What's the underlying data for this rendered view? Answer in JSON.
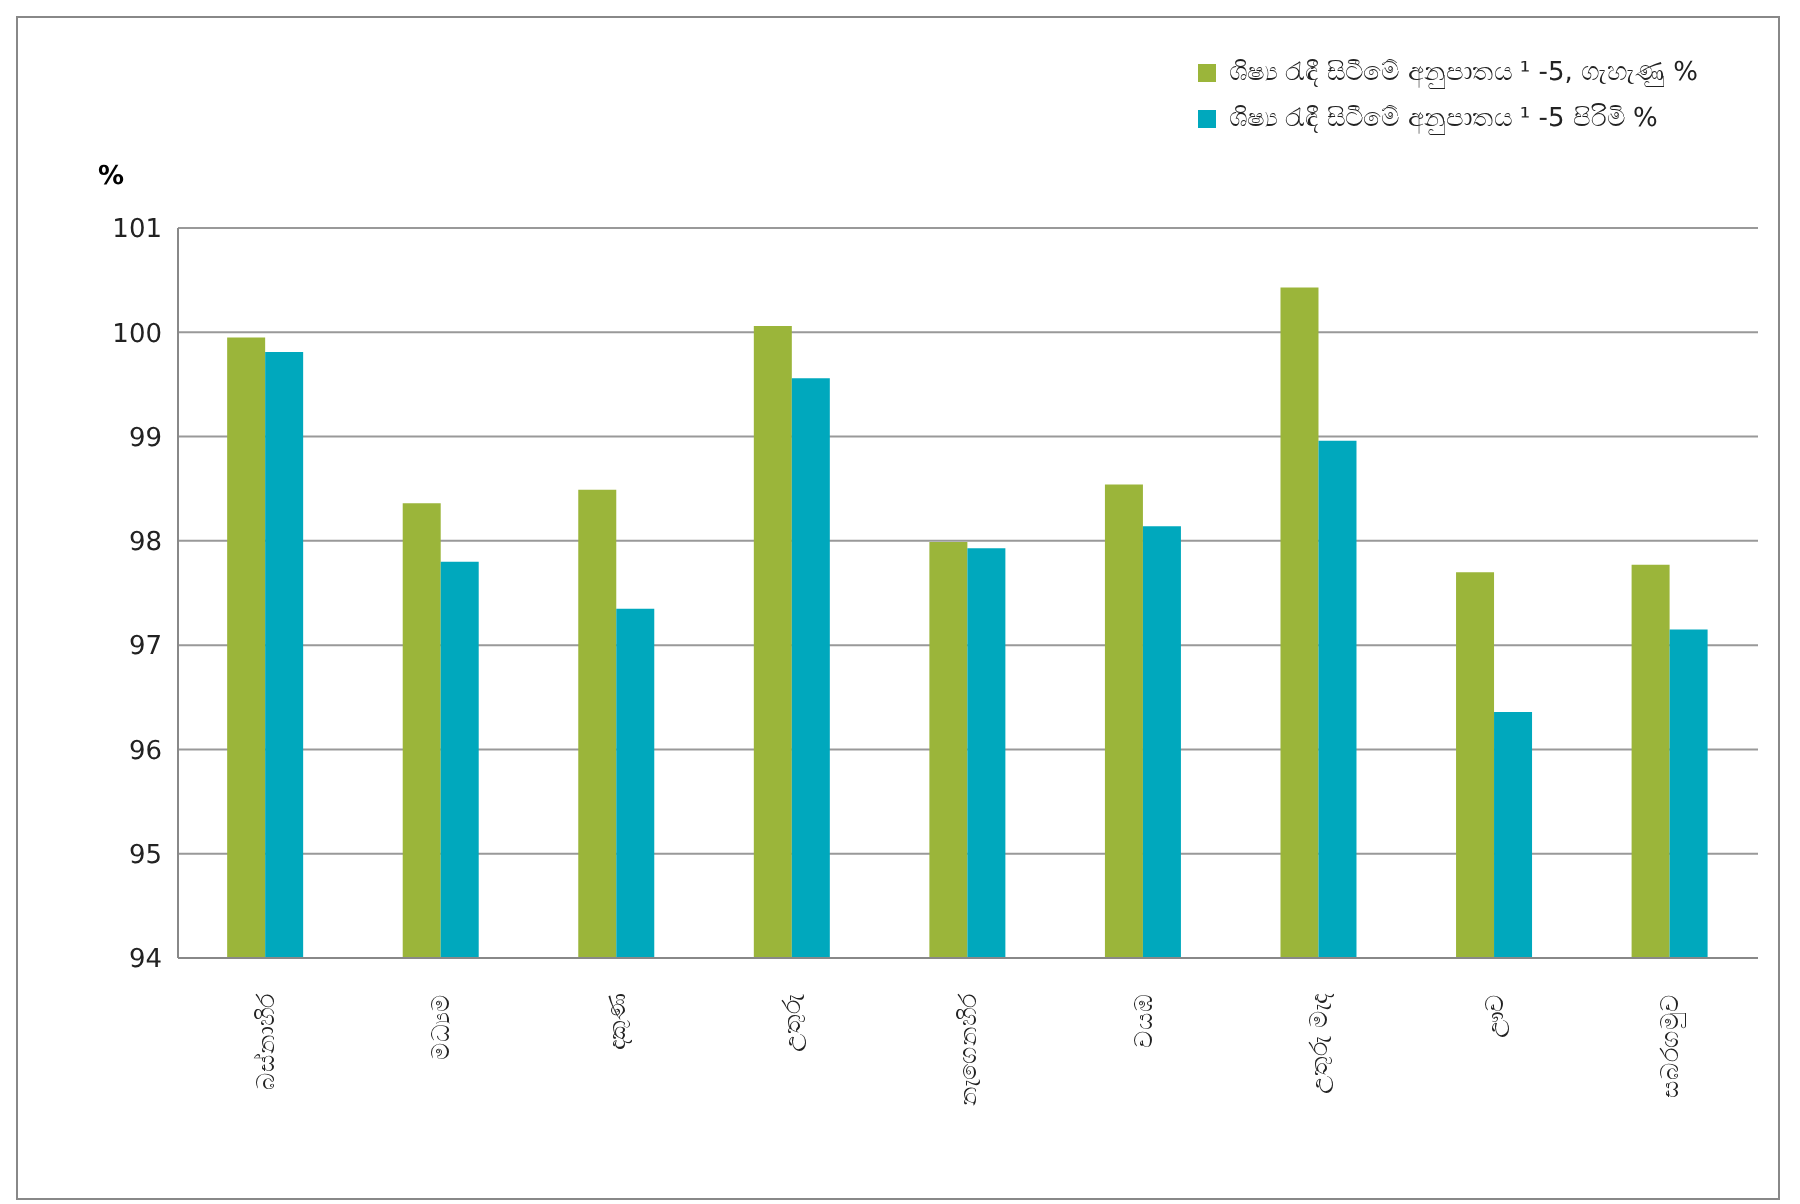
{
  "chart_data": {
    "type": "bar",
    "ylabel": "%",
    "categories": [
      "බස්නාහිර",
      "මධ්‍යම",
      "දකුණ",
      "උතුරු",
      "නැගෙනහිර",
      "වයඹ",
      "උතුරු මැද",
      "ඌව",
      "සබරගමුව"
    ],
    "series": [
      {
        "name": "ශිෂ්‍ය රැඳී සිටීමේ අනුපාතය ¹ -5, ගැහැණු %",
        "color": "#9bb53a",
        "values": [
          99.95,
          98.36,
          98.49,
          100.06,
          97.99,
          98.54,
          100.43,
          97.7,
          97.77
        ]
      },
      {
        "name": "ශිෂ්‍ය රැඳී සිටීමේ අනුපාතය ¹ -5 පිරිමි %",
        "color": "#00a8bd",
        "values": [
          99.81,
          97.8,
          97.35,
          99.56,
          97.93,
          98.14,
          98.96,
          96.36,
          97.15
        ]
      }
    ],
    "ylim": [
      94,
      101
    ],
    "yticks": [
      94,
      95,
      96,
      97,
      98,
      99,
      100,
      101
    ],
    "grid": "y",
    "legend": "top right"
  }
}
